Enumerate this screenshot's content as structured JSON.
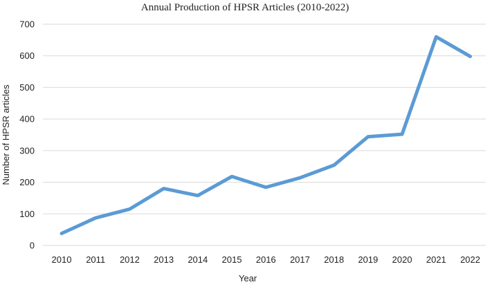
{
  "chart_data": {
    "type": "line",
    "title": "Annual Production of HPSR Articles (2010-2022)",
    "xlabel": "Year",
    "ylabel": "Number of HPSR articles",
    "categories": [
      "2010",
      "2011",
      "2012",
      "2013",
      "2014",
      "2015",
      "2016",
      "2017",
      "2018",
      "2019",
      "2020",
      "2021",
      "2022"
    ],
    "series": [
      {
        "values": [
          38,
          87,
          115,
          180,
          158,
          218,
          184,
          214,
          254,
          344,
          352,
          660,
          598
        ],
        "color": "#5b9bd5"
      }
    ],
    "ylim": [
      0,
      700
    ],
    "yticks": [
      0,
      100,
      200,
      300,
      400,
      500,
      600,
      700
    ],
    "grid": true,
    "legend": "none"
  }
}
